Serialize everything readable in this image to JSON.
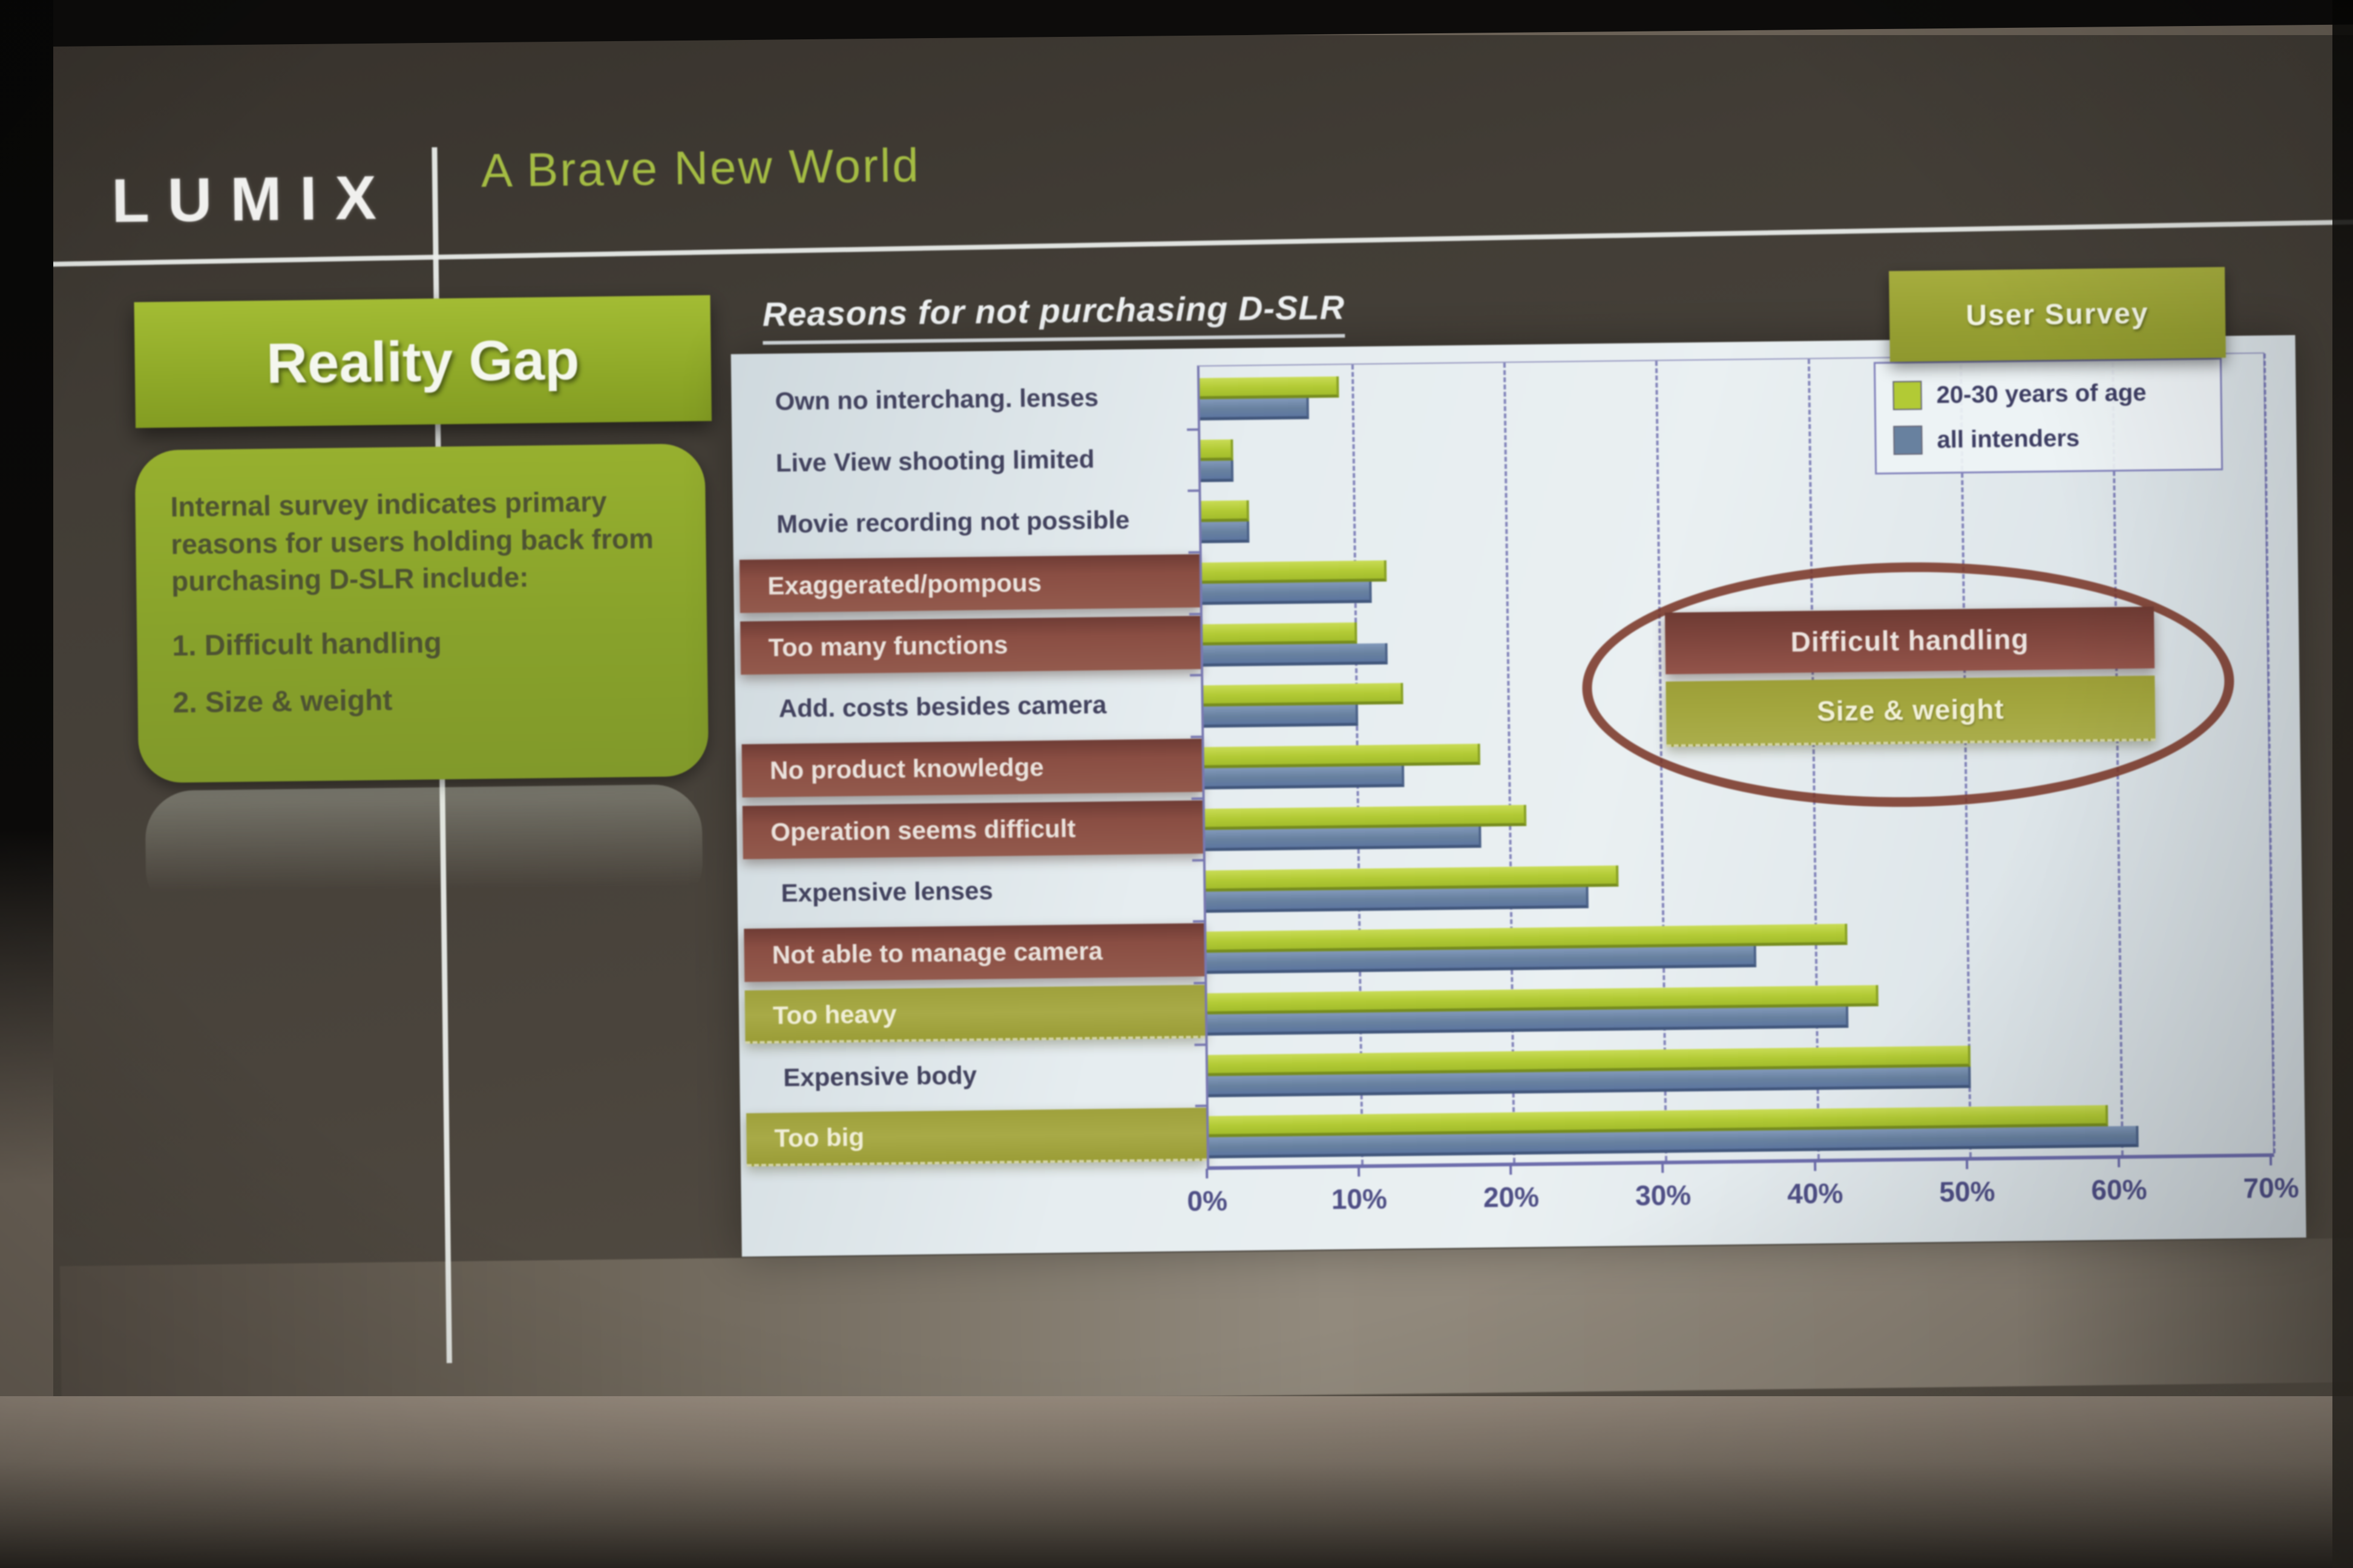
{
  "header": {
    "brand": "LUMIX",
    "deck_title": "A Brave New World"
  },
  "sidebar": {
    "title": "Reality Gap",
    "body_lines": [
      "Internal survey indicates primary",
      "reasons for users holding back from",
      "purchasing D-SLR include:"
    ],
    "items": [
      "1. Difficult handling",
      "2. Size & weight"
    ]
  },
  "chart": {
    "title": "Reasons for not purchasing D-SLR",
    "legend": {
      "tab": "User Survey",
      "entries": [
        {
          "label": "20-30 years of age",
          "swatch": "green"
        },
        {
          "label": "all intenders",
          "swatch": "blue"
        }
      ]
    },
    "annotation": {
      "box_red": "Difficult handling",
      "box_green": "Size & weight"
    }
  },
  "chart_data": {
    "type": "bar",
    "orientation": "horizontal",
    "title": "Reasons for not purchasing D-SLR",
    "categories": [
      "Own no interchang. lenses",
      "Live View shooting limited",
      "Movie recording not possible",
      "Exaggerated/pompous",
      "Too many functions",
      "Add. costs besides camera",
      "No product knowledge",
      "Operation seems difficult",
      "Expensive lenses",
      "Not able to manage camera",
      "Too heavy",
      "Expensive body",
      "Too big"
    ],
    "category_label_styles": [
      "plain",
      "plain",
      "plain",
      "red",
      "red",
      "plain",
      "red",
      "red",
      "plain",
      "red",
      "green",
      "plain",
      "green"
    ],
    "series": [
      {
        "name": "20-30 years of age",
        "color": "#b2ca35",
        "values": [
          9,
          2,
          3,
          12,
          10,
          13,
          18,
          21,
          27,
          42,
          44,
          50,
          59
        ]
      },
      {
        "name": "all intenders",
        "color": "#68819f",
        "values": [
          7,
          2,
          3,
          11,
          12,
          10,
          13,
          18,
          25,
          36,
          42,
          50,
          61
        ]
      }
    ],
    "xlabel_ticks": [
      "0%",
      "10%",
      "20%",
      "30%",
      "40%",
      "50%",
      "60%",
      "70%"
    ],
    "xlim": [
      0,
      70
    ],
    "gridlines": "dashed vertical every 10%",
    "legend_position": "top-right",
    "units": "percent"
  },
  "colors": {
    "series_green": "#b2ca35",
    "series_blue": "#68819f",
    "label_box_red": "#8a4e43",
    "label_box_olive": "#a3a63e",
    "accent_green": "#8fa928",
    "ellipse_red": "#7a3728",
    "panel_bg": "#e6edf0",
    "slide_bg": "#46403a",
    "grid_purple": "#6161a8"
  }
}
